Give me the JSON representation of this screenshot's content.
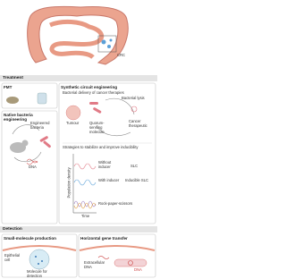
{
  "top": {
    "label": "CRC"
  },
  "treatment": {
    "title": "Treatment",
    "fmt": {
      "title": "FMT"
    },
    "native": {
      "title": "Native bacteria engineering",
      "engineered": "Engineered bacteria",
      "dna": "DNA"
    },
    "synthetic": {
      "title": "Synthetic circuit engineering",
      "subtitle": "Bacterial delivery of cancer therapies",
      "lysis": "Bacterial lysis",
      "tumour": "Tumour",
      "qs": "Quorum-sensing molecule",
      "therapeutic": "Cancer therapeutic",
      "strategies": "Strategies to stabilize and improve inducibility",
      "y_axis": "Population density",
      "x_axis": "Time",
      "slc": "SLC",
      "without": "Without inducer",
      "with": "With inducer",
      "inducible": "Inducible SLC",
      "rps": "Rock-paper-scissors"
    }
  },
  "detection": {
    "title": "Detection",
    "small": {
      "title": "Small-molecule production",
      "cell": "Epithelial cell",
      "molecule": "Molecule for detection"
    },
    "hgt": {
      "title": "Horizontal gene transfer",
      "edna": "Extracellular DNA",
      "dna": "DNA"
    }
  }
}
